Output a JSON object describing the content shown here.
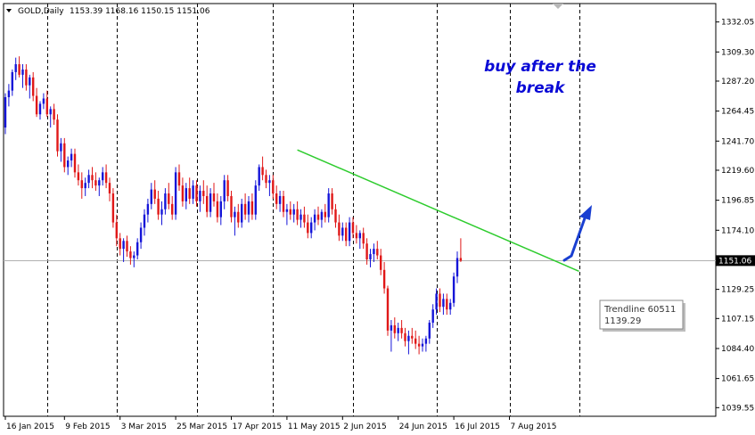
{
  "header": {
    "symbol_label": "GOLD,Daily",
    "ohlc_text": "1153.39 1168.16 1150.15 1151.06"
  },
  "annotation": {
    "line1": "buy after the",
    "line2": "break"
  },
  "tooltip": {
    "name": "Trendline 60511",
    "value": "1139.29"
  },
  "current_price_label": "1151.06",
  "colors": {
    "bull": "#1515d8",
    "bear": "#e01818",
    "trendline": "#2ecc2e",
    "arrow": "#1a3fd1",
    "annotation": "#0a0ad6",
    "price_line": "#b0b0b0"
  },
  "chart_data": {
    "type": "candlestick",
    "symbol": "GOLD",
    "timeframe": "Daily",
    "y_ticks": [
      1332.05,
      1309.3,
      1287.2,
      1264.45,
      1241.7,
      1219.6,
      1196.85,
      1174.1,
      1151.06,
      1129.25,
      1107.15,
      1084.4,
      1061.65,
      1039.55
    ],
    "ylim": [
      1033,
      1346
    ],
    "x_ticks": [
      "16 Jan 2015",
      "9 Feb 2015",
      "3 Mar 2015",
      "25 Mar 2015",
      "17 Apr 2015",
      "11 May 2015",
      "2 Jun 2015",
      "24 Jun 2015",
      "16 Jul 2015",
      "7 Aug 2015"
    ],
    "x_tick_index": [
      0,
      17,
      33,
      49,
      65,
      81,
      97,
      113,
      129,
      145
    ],
    "period_separator_index": [
      12,
      32,
      55,
      77,
      100,
      124,
      145,
      165
    ],
    "trendline": {
      "label": "Trendline 60511",
      "start": [
        84,
        1235
      ],
      "end": [
        165,
        1143
      ]
    },
    "current_price": 1151.06,
    "candles": [
      [
        1252,
        1278,
        1247,
        1275
      ],
      [
        1275,
        1285,
        1268,
        1280
      ],
      [
        1280,
        1296,
        1276,
        1294
      ],
      [
        1294,
        1305,
        1288,
        1300
      ],
      [
        1300,
        1306,
        1290,
        1292
      ],
      [
        1292,
        1300,
        1282,
        1296
      ],
      [
        1296,
        1300,
        1280,
        1284
      ],
      [
        1284,
        1292,
        1274,
        1290
      ],
      [
        1290,
        1294,
        1272,
        1276
      ],
      [
        1276,
        1282,
        1260,
        1262
      ],
      [
        1262,
        1272,
        1258,
        1270
      ],
      [
        1270,
        1278,
        1266,
        1274
      ],
      [
        1274,
        1280,
        1260,
        1262
      ],
      [
        1262,
        1268,
        1252,
        1266
      ],
      [
        1266,
        1270,
        1254,
        1258
      ],
      [
        1258,
        1262,
        1230,
        1234
      ],
      [
        1234,
        1244,
        1226,
        1240
      ],
      [
        1240,
        1244,
        1218,
        1222
      ],
      [
        1222,
        1230,
        1216,
        1227
      ],
      [
        1227,
        1236,
        1222,
        1232
      ],
      [
        1232,
        1236,
        1214,
        1218
      ],
      [
        1218,
        1224,
        1208,
        1212
      ],
      [
        1212,
        1218,
        1198,
        1206
      ],
      [
        1206,
        1214,
        1200,
        1210
      ],
      [
        1210,
        1220,
        1206,
        1216
      ],
      [
        1216,
        1222,
        1206,
        1212
      ],
      [
        1212,
        1218,
        1204,
        1208
      ],
      [
        1208,
        1214,
        1200,
        1212
      ],
      [
        1212,
        1222,
        1208,
        1218
      ],
      [
        1218,
        1224,
        1206,
        1210
      ],
      [
        1210,
        1214,
        1196,
        1202
      ],
      [
        1202,
        1206,
        1176,
        1180
      ],
      [
        1180,
        1186,
        1162,
        1168
      ],
      [
        1168,
        1172,
        1155,
        1160
      ],
      [
        1160,
        1168,
        1150,
        1166
      ],
      [
        1166,
        1170,
        1154,
        1158
      ],
      [
        1158,
        1162,
        1148,
        1153
      ],
      [
        1153,
        1158,
        1146,
        1155
      ],
      [
        1155,
        1168,
        1152,
        1165
      ],
      [
        1165,
        1180,
        1160,
        1176
      ],
      [
        1176,
        1190,
        1170,
        1186
      ],
      [
        1186,
        1198,
        1180,
        1194
      ],
      [
        1194,
        1210,
        1190,
        1205
      ],
      [
        1205,
        1212,
        1194,
        1198
      ],
      [
        1198,
        1204,
        1182,
        1186
      ],
      [
        1186,
        1196,
        1178,
        1190
      ],
      [
        1190,
        1206,
        1186,
        1202
      ],
      [
        1202,
        1210,
        1190,
        1194
      ],
      [
        1194,
        1200,
        1182,
        1186
      ],
      [
        1186,
        1222,
        1182,
        1218
      ],
      [
        1218,
        1224,
        1204,
        1208
      ],
      [
        1208,
        1214,
        1192,
        1196
      ],
      [
        1196,
        1210,
        1190,
        1206
      ],
      [
        1206,
        1214,
        1194,
        1198
      ],
      [
        1198,
        1212,
        1194,
        1208
      ],
      [
        1208,
        1212,
        1192,
        1196
      ],
      [
        1196,
        1208,
        1188,
        1204
      ],
      [
        1204,
        1212,
        1194,
        1200
      ],
      [
        1200,
        1208,
        1184,
        1188
      ],
      [
        1188,
        1206,
        1184,
        1202
      ],
      [
        1202,
        1210,
        1192,
        1196
      ],
      [
        1196,
        1202,
        1180,
        1184
      ],
      [
        1184,
        1200,
        1178,
        1196
      ],
      [
        1196,
        1216,
        1190,
        1212
      ],
      [
        1212,
        1216,
        1196,
        1200
      ],
      [
        1200,
        1204,
        1180,
        1184
      ],
      [
        1184,
        1192,
        1170,
        1188
      ],
      [
        1188,
        1194,
        1176,
        1180
      ],
      [
        1180,
        1198,
        1176,
        1194
      ],
      [
        1194,
        1202,
        1182,
        1186
      ],
      [
        1186,
        1200,
        1180,
        1196
      ],
      [
        1196,
        1202,
        1182,
        1186
      ],
      [
        1186,
        1212,
        1182,
        1208
      ],
      [
        1208,
        1224,
        1204,
        1222
      ],
      [
        1222,
        1230,
        1212,
        1216
      ],
      [
        1216,
        1220,
        1206,
        1210
      ],
      [
        1210,
        1216,
        1200,
        1212
      ],
      [
        1212,
        1216,
        1198,
        1202
      ],
      [
        1202,
        1208,
        1190,
        1194
      ],
      [
        1194,
        1204,
        1188,
        1200
      ],
      [
        1200,
        1204,
        1184,
        1188
      ],
      [
        1188,
        1194,
        1178,
        1190
      ],
      [
        1190,
        1196,
        1182,
        1186
      ],
      [
        1186,
        1194,
        1180,
        1190
      ],
      [
        1190,
        1196,
        1178,
        1182
      ],
      [
        1182,
        1190,
        1176,
        1186
      ],
      [
        1186,
        1192,
        1176,
        1180
      ],
      [
        1180,
        1186,
        1168,
        1172
      ],
      [
        1172,
        1184,
        1168,
        1180
      ],
      [
        1180,
        1190,
        1174,
        1186
      ],
      [
        1186,
        1192,
        1178,
        1182
      ],
      [
        1182,
        1190,
        1176,
        1188
      ],
      [
        1188,
        1194,
        1180,
        1184
      ],
      [
        1184,
        1206,
        1180,
        1202
      ],
      [
        1202,
        1206,
        1186,
        1190
      ],
      [
        1190,
        1194,
        1176,
        1180
      ],
      [
        1180,
        1186,
        1166,
        1170
      ],
      [
        1170,
        1180,
        1166,
        1176
      ],
      [
        1176,
        1180,
        1162,
        1166
      ],
      [
        1166,
        1184,
        1162,
        1180
      ],
      [
        1180,
        1184,
        1168,
        1172
      ],
      [
        1172,
        1178,
        1164,
        1168
      ],
      [
        1168,
        1174,
        1160,
        1172
      ],
      [
        1172,
        1176,
        1160,
        1164
      ],
      [
        1164,
        1168,
        1148,
        1152
      ],
      [
        1152,
        1160,
        1146,
        1156
      ],
      [
        1156,
        1164,
        1150,
        1160
      ],
      [
        1160,
        1166,
        1152,
        1155
      ],
      [
        1155,
        1160,
        1140,
        1144
      ],
      [
        1144,
        1150,
        1126,
        1130
      ],
      [
        1130,
        1132,
        1094,
        1098
      ],
      [
        1098,
        1106,
        1082,
        1102
      ],
      [
        1102,
        1108,
        1092,
        1096
      ],
      [
        1096,
        1104,
        1090,
        1100
      ],
      [
        1100,
        1106,
        1092,
        1096
      ],
      [
        1096,
        1100,
        1086,
        1090
      ],
      [
        1090,
        1098,
        1080,
        1094
      ],
      [
        1094,
        1100,
        1088,
        1092
      ],
      [
        1092,
        1098,
        1084,
        1088
      ],
      [
        1088,
        1094,
        1080,
        1086
      ],
      [
        1086,
        1092,
        1082,
        1088
      ],
      [
        1088,
        1094,
        1082,
        1092
      ],
      [
        1092,
        1106,
        1088,
        1104
      ],
      [
        1104,
        1118,
        1100,
        1114
      ],
      [
        1114,
        1130,
        1110,
        1126
      ],
      [
        1126,
        1130,
        1112,
        1116
      ],
      [
        1116,
        1126,
        1110,
        1122
      ],
      [
        1122,
        1126,
        1110,
        1114
      ],
      [
        1114,
        1122,
        1110,
        1119
      ],
      [
        1119,
        1142,
        1116,
        1139
      ],
      [
        1139,
        1158,
        1134,
        1153
      ],
      [
        1153,
        1168,
        1150,
        1151
      ]
    ]
  }
}
